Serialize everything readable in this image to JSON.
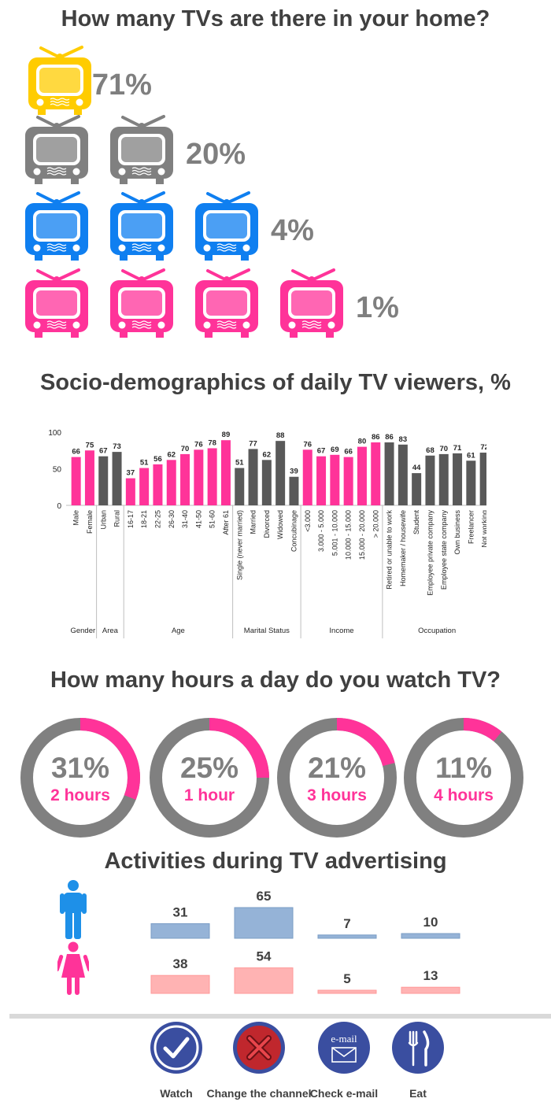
{
  "section_tvs": {
    "title": "How many TVs are there in your home?",
    "rows": [
      {
        "count": 1,
        "percent": "71%",
        "color": "#ffcc00"
      },
      {
        "count": 2,
        "percent": "20%",
        "color": "#808080"
      },
      {
        "count": 3,
        "percent": "4%",
        "color": "#0f7ff0"
      },
      {
        "count": 4,
        "percent": "1%",
        "color": "#ff3399"
      }
    ]
  },
  "section_demo": {
    "title": "Socio-demographics of daily TV viewers, %"
  },
  "section_hours": {
    "title": "How many hours a day do you watch TV?",
    "items": [
      {
        "percent": "31%",
        "label": "2 hours",
        "value": 31
      },
      {
        "percent": "25%",
        "label": "1 hour",
        "value": 25
      },
      {
        "percent": "21%",
        "label": "3 hours",
        "value": 21
      },
      {
        "percent": "11%",
        "label": "4 hours",
        "value": 11
      }
    ]
  },
  "section_activities": {
    "title": "Activities during TV advertising",
    "male_icon": "male-person-icon",
    "female_icon": "female-person-icon"
  },
  "footer": {
    "items": [
      {
        "label": "Watch",
        "icon": "checkmark-icon"
      },
      {
        "label": "Change the channel",
        "icon": "cross-icon"
      },
      {
        "label": "Check e-mail",
        "icon": "email-icon",
        "icon_text": "e-mail"
      },
      {
        "label": "Eat",
        "icon": "fork-knife-icon"
      }
    ]
  },
  "colors": {
    "pink": "#ff3399",
    "dark_gray": "#595959",
    "gray": "#808080",
    "blue": "#0f7ff0",
    "yellow": "#ffcc00",
    "navy": "#3a4ea0",
    "male_bar": "#95b3d7",
    "female_bar": "#ffb3b3"
  },
  "chart_data": [
    {
      "type": "bar",
      "title": "Socio-demographics of daily TV viewers, %",
      "ylim": [
        0,
        100
      ],
      "yticks": [
        0,
        50,
        100
      ],
      "categories": [
        "Male",
        "Female",
        "Urban",
        "Rural",
        "16-17",
        "18-21",
        "22-25",
        "26-30",
        "31-40",
        "41-50",
        "51-60",
        "After 61",
        "Single (never married)",
        "Married",
        "Divorced",
        "Widowed",
        "Concubinage",
        "<3.000",
        "3.000 - 5.000",
        "5.001 - 10.000",
        "10.000 - 15.000",
        "15.000 - 20.000",
        "> 20.000",
        "Retired or unable to work",
        "Homemaker / housewife",
        "Student",
        "Employee private company",
        "Employee state company",
        "Own business",
        "Freelancer",
        "Not working"
      ],
      "values": [
        66,
        75,
        67,
        73,
        37,
        51,
        56,
        62,
        70,
        76,
        78,
        89,
        51,
        77,
        62,
        88,
        39,
        76,
        67,
        69,
        66,
        80,
        86,
        86,
        83,
        44,
        68,
        70,
        71,
        61,
        72
      ],
      "groups": [
        {
          "name": "Gender",
          "count": 2,
          "color": "#ff3399"
        },
        {
          "name": "Area",
          "count": 2,
          "color": "#595959"
        },
        {
          "name": "Age",
          "count": 8,
          "color": "#ff3399"
        },
        {
          "name": "Marital Status",
          "count": 5,
          "color": "#595959"
        },
        {
          "name": "Income",
          "count": 6,
          "color": "#ff3399"
        },
        {
          "name": "Occupation",
          "count": 8,
          "color": "#595959"
        }
      ]
    },
    {
      "type": "bar",
      "title": "Activities during TV advertising",
      "categories": [
        "Watch",
        "Change the channel",
        "Check e-mail",
        "Eat"
      ],
      "series": [
        {
          "values": [
            31,
            65,
            7,
            10
          ],
          "color": "#95b3d7"
        },
        {
          "values": [
            38,
            54,
            5,
            13
          ],
          "color": "#ffb3b3"
        }
      ]
    }
  ]
}
